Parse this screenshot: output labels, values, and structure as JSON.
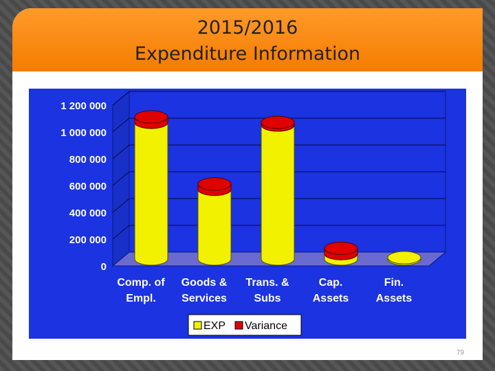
{
  "slide": {
    "title": "2015/2016\nExpenditure Information",
    "page_number": "79"
  },
  "chart_data": {
    "type": "bar",
    "style": "3d-cylinder",
    "categories": [
      "Comp. of Empl.",
      "Goods & Services",
      "Trans. & Subs",
      "Cap. Assets",
      "Fin. Assets"
    ],
    "category_lines": [
      [
        "Comp. of",
        "Empl."
      ],
      [
        "Goods &",
        "Services"
      ],
      [
        "Trans. &",
        "Subs"
      ],
      [
        "Cap.",
        "Assets"
      ],
      [
        "Fin.",
        "Assets"
      ]
    ],
    "stacked": true,
    "series": [
      {
        "name": "EXP",
        "color": "#f2f200",
        "values": [
          1020000,
          520000,
          1000000,
          40000,
          10000
        ]
      },
      {
        "name": "Variance",
        "color": "#e00000",
        "values": [
          40000,
          40000,
          20000,
          40000,
          0
        ]
      }
    ],
    "ylim": [
      0,
      1200000
    ],
    "yticks": [
      0,
      200000,
      400000,
      600000,
      800000,
      1000000,
      1200000
    ],
    "ytick_labels": [
      "0",
      "200 000",
      "400 000",
      "600 000",
      "800 000",
      "1 000 000",
      "1 200 000"
    ],
    "grid": true,
    "legend_position": "bottom",
    "colors": {
      "panel": "#1b33e0",
      "floor": "#6a6ad0",
      "wall": "#1b33e0"
    }
  }
}
